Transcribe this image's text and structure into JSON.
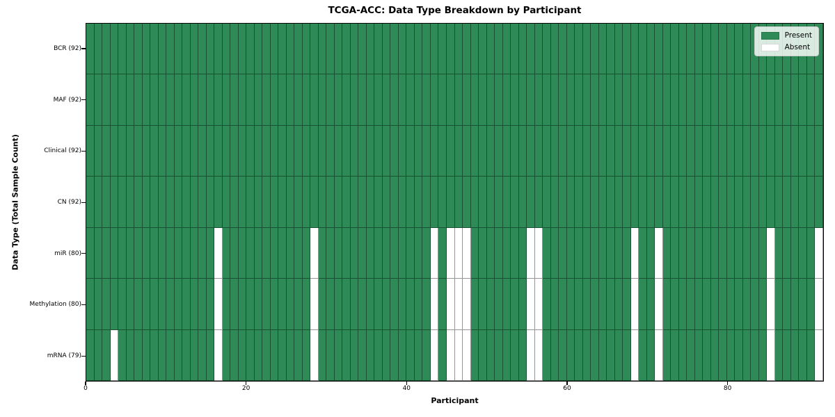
{
  "chart_data": {
    "type": "heatmap",
    "title": "TCGA-ACC: Data Type Breakdown by Participant",
    "xlabel": "Participant",
    "ylabel": "Data Type (Total Sample Count)",
    "n_participants": 92,
    "x_ticks": [
      "0",
      "20",
      "40",
      "60",
      "80"
    ],
    "x_tick_values": [
      0,
      20,
      40,
      60,
      80
    ],
    "legend": [
      {
        "label": "Present",
        "color": "#2e8b57"
      },
      {
        "label": "Absent",
        "color": "#ffffff"
      }
    ],
    "colors": {
      "present": "#2e8b57",
      "absent": "#ffffff"
    },
    "rows": [
      {
        "label": "BCR (92)",
        "count": 92,
        "absent": []
      },
      {
        "label": "MAF (92)",
        "count": 92,
        "absent": []
      },
      {
        "label": "Clinical (92)",
        "count": 92,
        "absent": []
      },
      {
        "label": "CN (92)",
        "count": 92,
        "absent": []
      },
      {
        "label": "miR (80)",
        "count": 80,
        "absent": [
          16,
          28,
          43,
          45,
          46,
          47,
          55,
          56,
          68,
          71,
          85,
          91
        ]
      },
      {
        "label": "Methylation (80)",
        "count": 80,
        "absent": [
          16,
          28,
          43,
          45,
          46,
          47,
          55,
          56,
          68,
          71,
          85,
          91
        ]
      },
      {
        "label": "mRNA (79)",
        "count": 79,
        "absent": [
          3,
          16,
          28,
          43,
          45,
          46,
          47,
          55,
          56,
          68,
          71,
          85,
          91
        ]
      }
    ]
  }
}
